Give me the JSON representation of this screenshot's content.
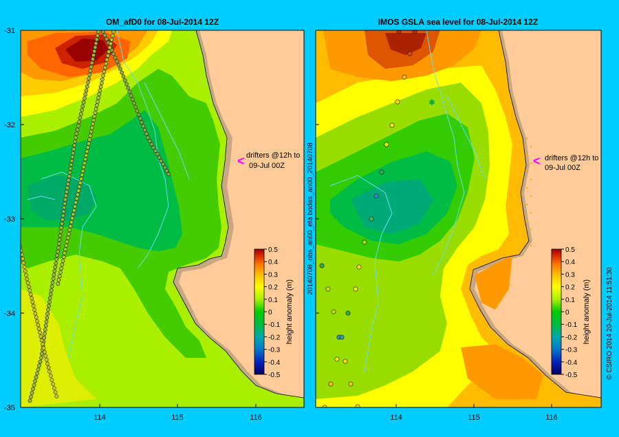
{
  "colors": {
    "background": "#00ccff",
    "land": "#ffcc99",
    "shelf": "#c8a882",
    "river": "#66ddee",
    "drifter_arrow": "#ff00ff"
  },
  "left_panel": {
    "title": "OM_afD0 for 08-Jul-2014 12Z",
    "annotation_line1": "drifters @12h to",
    "annotation_line2": "09-Jul 00Z"
  },
  "right_panel": {
    "title": "IMOS GSLA sea level  for 08-Jul-2014 12Z",
    "annotation_line1": "drifters @12h to",
    "annotation_line2": "09-Jul 00Z",
    "side_label": "20140708_obs_an00_eta  bodas_an00_20140708"
  },
  "axes": {
    "y_ticks": [
      "-31",
      "-32",
      "-33",
      "-34",
      "-35"
    ],
    "x_ticks": [
      "114",
      "115",
      "116"
    ]
  },
  "colorbar": {
    "label": "height anomaly (m)",
    "ticks": [
      "0.5",
      "0.4",
      "0.3",
      "0.2",
      "0.1",
      "0",
      "-0.1",
      "-0.2",
      "-0.3",
      "-0.4",
      "-0.5"
    ],
    "colors": [
      "#000066",
      "#0022bb",
      "#0066cc",
      "#00a0c0",
      "#00b060",
      "#00cc00",
      "#88dd00",
      "#ffff00",
      "#ffcc00",
      "#ff9900",
      "#ff6600",
      "#dd3300",
      "#990000"
    ]
  },
  "credit": "© CSIRO 2014   20-Jul-2014 11:51:30"
}
